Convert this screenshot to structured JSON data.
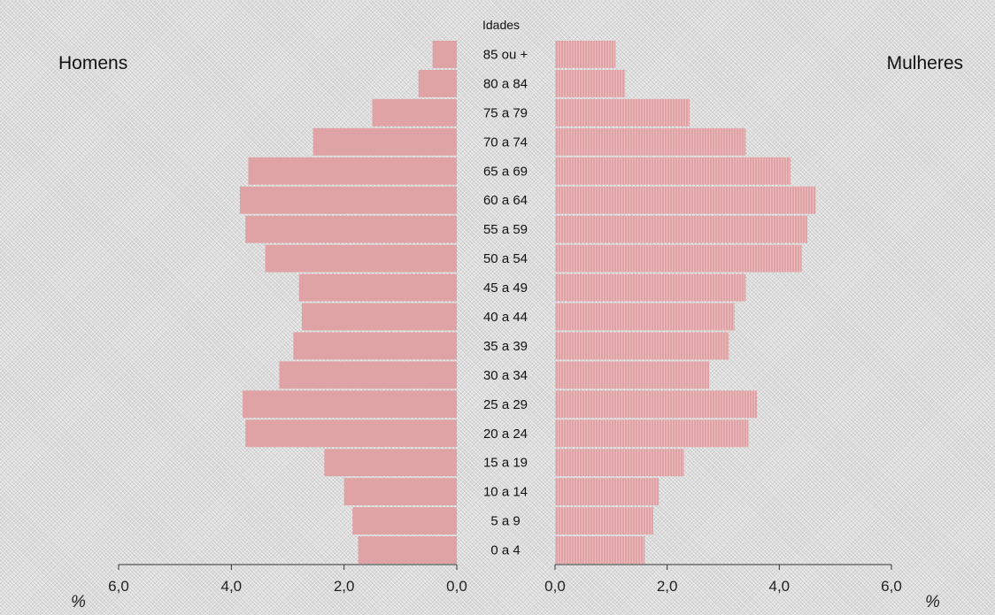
{
  "chart_data": {
    "type": "bar",
    "orientation": "horizontal",
    "layout": "population-pyramid",
    "age_axis_title": "Idades",
    "categories": [
      "0 a 4",
      "5 a 9",
      "10 a 14",
      "15 a 19",
      "20 a 24",
      "25 a 29",
      "30 a 34",
      "35 a 39",
      "40 a 44",
      "45 a 49",
      "50 a 54",
      "55 a 59",
      "60 a 64",
      "65 a 69",
      "70 a 74",
      "75 a 79",
      "80 a 84",
      "85 ou +"
    ],
    "series": [
      {
        "name": "Homens",
        "side": "left",
        "values": [
          1.75,
          1.85,
          2.0,
          2.35,
          3.75,
          3.8,
          3.15,
          2.9,
          2.75,
          2.8,
          3.4,
          3.75,
          3.85,
          3.7,
          2.55,
          1.5,
          0.68,
          0.43
        ]
      },
      {
        "name": "Mulheres",
        "side": "right",
        "values": [
          1.6,
          1.75,
          1.85,
          2.3,
          3.45,
          3.6,
          2.75,
          3.1,
          3.2,
          3.4,
          4.4,
          4.5,
          4.65,
          4.2,
          3.4,
          2.4,
          1.25,
          1.08
        ]
      }
    ],
    "xlim": [
      0,
      6
    ],
    "ticks": [
      "0,0",
      "2,0",
      "4,0",
      "6,0"
    ],
    "unit_label": "%",
    "bar_color": "#e0a3a5",
    "grid": false
  }
}
